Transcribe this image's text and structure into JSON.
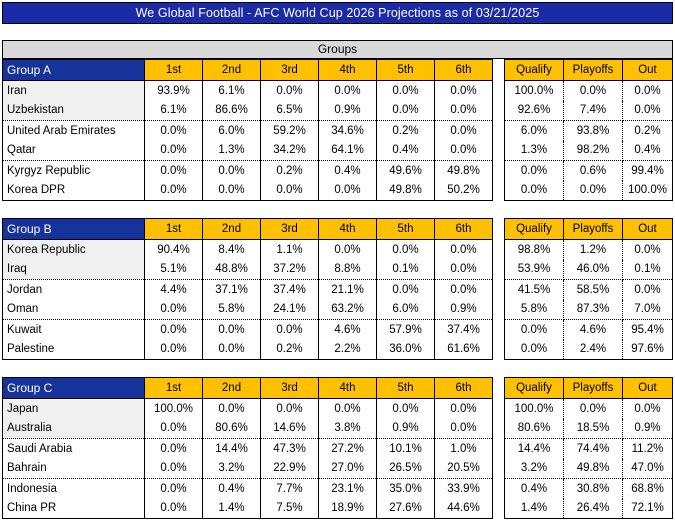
{
  "title": "We Global Football - AFC World Cup 2026 Projections as of 03/21/2025",
  "groups_band_label": "Groups",
  "position_headers": [
    "1st",
    "2nd",
    "3rd",
    "4th",
    "5th",
    "6th"
  ],
  "outcome_headers": [
    "Qualify",
    "Playoffs",
    "Out"
  ],
  "colors": {
    "title_bar_bg": "#1b2aa6",
    "group_header_bg": "#16339c",
    "header_gold": "#ffc000",
    "groups_band_bg": "#d9d9d9",
    "qualified_row_bg": "#f0f0f0",
    "border_black": "#000000"
  },
  "groups": [
    {
      "name": "Group A",
      "teams": [
        {
          "team": "Iran",
          "positions": [
            "93.9%",
            "6.1%",
            "0.0%",
            "0.0%",
            "0.0%",
            "0.0%"
          ],
          "outcomes": [
            "100.0%",
            "0.0%",
            "0.0%"
          ]
        },
        {
          "team": "Uzbekistan",
          "positions": [
            "6.1%",
            "86.6%",
            "6.5%",
            "0.9%",
            "0.0%",
            "0.0%"
          ],
          "outcomes": [
            "92.6%",
            "7.4%",
            "0.0%"
          ]
        },
        {
          "team": "United Arab Emirates",
          "positions": [
            "0.0%",
            "6.0%",
            "59.2%",
            "34.6%",
            "0.2%",
            "0.0%"
          ],
          "outcomes": [
            "6.0%",
            "93.8%",
            "0.2%"
          ]
        },
        {
          "team": "Qatar",
          "positions": [
            "0.0%",
            "1.3%",
            "34.2%",
            "64.1%",
            "0.4%",
            "0.0%"
          ],
          "outcomes": [
            "1.3%",
            "98.2%",
            "0.4%"
          ]
        },
        {
          "team": "Kyrgyz Republic",
          "positions": [
            "0.0%",
            "0.0%",
            "0.2%",
            "0.4%",
            "49.6%",
            "49.8%"
          ],
          "outcomes": [
            "0.0%",
            "0.6%",
            "99.4%"
          ]
        },
        {
          "team": "Korea DPR",
          "positions": [
            "0.0%",
            "0.0%",
            "0.0%",
            "0.0%",
            "49.8%",
            "50.2%"
          ],
          "outcomes": [
            "0.0%",
            "0.0%",
            "100.0%"
          ]
        }
      ]
    },
    {
      "name": "Group B",
      "teams": [
        {
          "team": "Korea Republic",
          "positions": [
            "90.4%",
            "8.4%",
            "1.1%",
            "0.0%",
            "0.0%",
            "0.0%"
          ],
          "outcomes": [
            "98.8%",
            "1.2%",
            "0.0%"
          ]
        },
        {
          "team": "Iraq",
          "positions": [
            "5.1%",
            "48.8%",
            "37.2%",
            "8.8%",
            "0.1%",
            "0.0%"
          ],
          "outcomes": [
            "53.9%",
            "46.0%",
            "0.1%"
          ]
        },
        {
          "team": "Jordan",
          "positions": [
            "4.4%",
            "37.1%",
            "37.4%",
            "21.1%",
            "0.0%",
            "0.0%"
          ],
          "outcomes": [
            "41.5%",
            "58.5%",
            "0.0%"
          ]
        },
        {
          "team": "Oman",
          "positions": [
            "0.0%",
            "5.8%",
            "24.1%",
            "63.2%",
            "6.0%",
            "0.9%"
          ],
          "outcomes": [
            "5.8%",
            "87.3%",
            "7.0%"
          ]
        },
        {
          "team": "Kuwait",
          "positions": [
            "0.0%",
            "0.0%",
            "0.0%",
            "4.6%",
            "57.9%",
            "37.4%"
          ],
          "outcomes": [
            "0.0%",
            "4.6%",
            "95.4%"
          ]
        },
        {
          "team": "Palestine",
          "positions": [
            "0.0%",
            "0.0%",
            "0.2%",
            "2.2%",
            "36.0%",
            "61.6%"
          ],
          "outcomes": [
            "0.0%",
            "2.4%",
            "97.6%"
          ]
        }
      ]
    },
    {
      "name": "Group C",
      "teams": [
        {
          "team": "Japan",
          "positions": [
            "100.0%",
            "0.0%",
            "0.0%",
            "0.0%",
            "0.0%",
            "0.0%"
          ],
          "outcomes": [
            "100.0%",
            "0.0%",
            "0.0%"
          ]
        },
        {
          "team": "Australia",
          "positions": [
            "0.0%",
            "80.6%",
            "14.6%",
            "3.8%",
            "0.9%",
            "0.0%"
          ],
          "outcomes": [
            "80.6%",
            "18.5%",
            "0.9%"
          ]
        },
        {
          "team": "Saudi Arabia",
          "positions": [
            "0.0%",
            "14.4%",
            "47.3%",
            "27.2%",
            "10.1%",
            "1.0%"
          ],
          "outcomes": [
            "14.4%",
            "74.4%",
            "11.2%"
          ]
        },
        {
          "team": "Bahrain",
          "positions": [
            "0.0%",
            "3.2%",
            "22.9%",
            "27.0%",
            "26.5%",
            "20.5%"
          ],
          "outcomes": [
            "3.2%",
            "49.8%",
            "47.0%"
          ]
        },
        {
          "team": "Indonesia",
          "positions": [
            "0.0%",
            "0.4%",
            "7.7%",
            "23.1%",
            "35.0%",
            "33.9%"
          ],
          "outcomes": [
            "0.4%",
            "30.8%",
            "68.8%"
          ]
        },
        {
          "team": "China PR",
          "positions": [
            "0.0%",
            "1.4%",
            "7.5%",
            "18.9%",
            "27.6%",
            "44.6%"
          ],
          "outcomes": [
            "1.4%",
            "26.4%",
            "72.1%"
          ]
        }
      ]
    }
  ]
}
